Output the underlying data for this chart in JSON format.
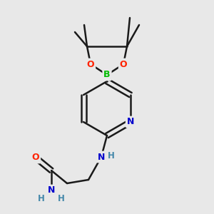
{
  "background_color": "#e8e8e8",
  "bond_color": "#1a1a1a",
  "atom_colors": {
    "O": "#ff2200",
    "N": "#0000cc",
    "B": "#00bb00",
    "H": "#4488aa"
  },
  "figsize": [
    3.0,
    3.0
  ],
  "dpi": 100
}
